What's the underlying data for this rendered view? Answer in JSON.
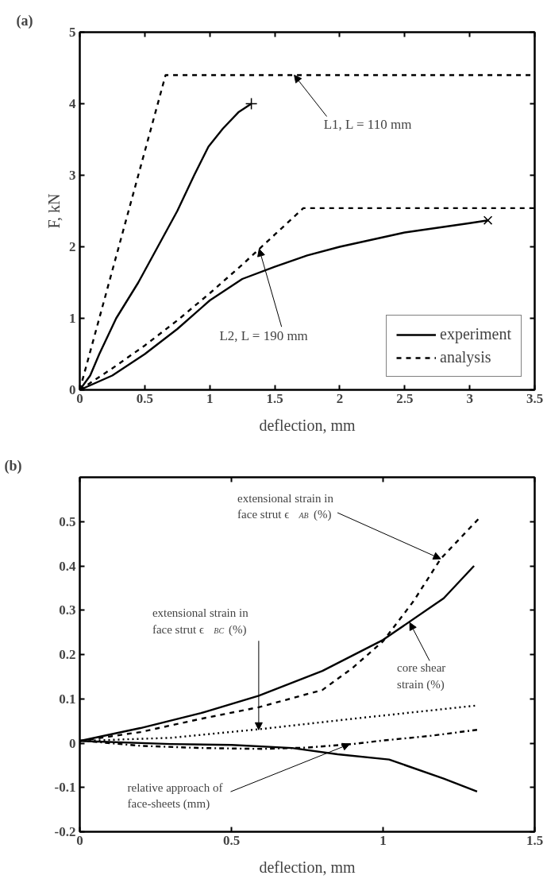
{
  "chart_data": [
    {
      "type": "line",
      "title": "(a)",
      "xlabel": "deflection, mm",
      "ylabel": "F, kN",
      "xlim": [
        0,
        3.5
      ],
      "ylim": [
        0,
        5
      ],
      "xticks": [
        0,
        0.5,
        1,
        1.5,
        2,
        2.5,
        3,
        3.5
      ],
      "yticks": [
        0,
        1,
        2,
        3,
        4,
        5
      ],
      "grid": false,
      "legend": "bottom right",
      "series": [
        {
          "name": "experiment",
          "color": "#000000",
          "line_style": "solid",
          "x": [
            0,
            0.08,
            0.15,
            0.28,
            0.45,
            0.6,
            0.75,
            0.88,
            0.99,
            1.1,
            1.22,
            1.32
          ],
          "values": [
            0,
            0.2,
            0.5,
            1.0,
            1.5,
            2.0,
            2.5,
            3.0,
            3.4,
            3.65,
            3.88,
            4.0
          ]
        },
        {
          "name": "analysis",
          "color": "#000000",
          "line_style": "dashed",
          "x": [
            0,
            0.66,
            3.5
          ],
          "values": [
            0,
            4.4,
            4.4
          ]
        },
        {
          "color": "#000000",
          "line_style": "solid",
          "x": [
            0,
            0.25,
            0.5,
            0.75,
            1,
            1.25,
            1.5,
            1.75,
            2,
            2.5,
            3,
            3.14
          ],
          "values": [
            0,
            0.2,
            0.5,
            0.85,
            1.25,
            1.55,
            1.72,
            1.88,
            2.0,
            2.2,
            2.33,
            2.37
          ]
        },
        {
          "color": "#000000",
          "line_style": "dashed",
          "x": [
            0,
            0.25,
            0.5,
            0.75,
            1,
            1.25,
            1.5,
            1.72,
            3.5
          ],
          "values": [
            0,
            0.3,
            0.62,
            0.97,
            1.35,
            1.75,
            2.17,
            2.54,
            2.54
          ]
        },
        {
          "type": "scatter",
          "marker": "cross",
          "color": "#000000",
          "x": [
            1.32
          ],
          "values": [
            4.0
          ]
        },
        {
          "type": "scatter",
          "marker": "x",
          "color": "#000000",
          "x": [
            3.14
          ],
          "values": [
            2.37
          ]
        }
      ],
      "annotations": [
        {
          "text": "L1, L = 110 mm",
          "x": 1.65,
          "y": 4.4
        },
        {
          "text": "L2, L = 190 mm",
          "x": 1.38,
          "y": 1.97
        }
      ]
    },
    {
      "type": "line",
      "title": "(b)",
      "xlabel": "deflection, mm",
      "xlim": [
        0,
        1.5
      ],
      "ylim": [
        -0.2,
        0.6
      ],
      "xticks": [
        0,
        0.5,
        1,
        1.5
      ],
      "yticks": [
        -0.2,
        -0.1,
        0,
        0.1,
        0.2,
        0.3,
        0.4,
        0.5
      ],
      "grid": false,
      "series": [
        {
          "color": "#000000",
          "line_style": "solid",
          "x": [
            0,
            0.2,
            0.4,
            0.59,
            0.8,
            1.0,
            1.2,
            1.3
          ],
          "values": [
            0.005,
            0.034,
            0.068,
            0.107,
            0.163,
            0.233,
            0.327,
            0.4
          ]
        },
        {
          "color": "#000000",
          "line_style": "dashed",
          "x": [
            0,
            0.2,
            0.4,
            0.59,
            0.8,
            0.9,
            1.0,
            1.1,
            1.19,
            1.32
          ],
          "values": [
            0.005,
            0.025,
            0.055,
            0.081,
            0.12,
            0.17,
            0.23,
            0.32,
            0.416,
            0.51
          ]
        },
        {
          "color": "#000000",
          "line_style": "dotted",
          "x": [
            0,
            0.3,
            0.6,
            0.9,
            1.31
          ],
          "values": [
            0.005,
            0.012,
            0.032,
            0.055,
            0.085
          ]
        },
        {
          "color": "#000000",
          "line_style": "dashdot",
          "x": [
            0,
            0.2,
            0.4,
            0.6,
            0.75,
            0.9,
            1.0,
            1.15,
            1.31
          ],
          "values": [
            0.006,
            -0.006,
            -0.011,
            -0.013,
            -0.01,
            -0.002,
            0.006,
            0.016,
            0.03
          ]
        },
        {
          "color": "#000000",
          "line_style": "solid",
          "x": [
            0,
            0.3,
            0.5,
            0.7,
            0.85,
            1.02,
            1.2,
            1.31
          ],
          "values": [
            0.005,
            -0.002,
            -0.004,
            -0.011,
            -0.025,
            -0.037,
            -0.08,
            -0.109
          ]
        }
      ],
      "annotations": [
        {
          "text": "extensional strain in\nface strut ϵ$_{AB}$ (%)",
          "x": 1.19,
          "y": 0.416
        },
        {
          "text": "extensional strain in\nface strut ϵ$_{BC}$ (%)",
          "x": 0.59,
          "y": 0.03
        },
        {
          "text": "core shear\nstrain (%)",
          "x": 1.088,
          "y": 0.272
        },
        {
          "text": "relative approach of\nface-sheets (mm)",
          "x": 0.89,
          "y": -0.002
        }
      ]
    }
  ]
}
